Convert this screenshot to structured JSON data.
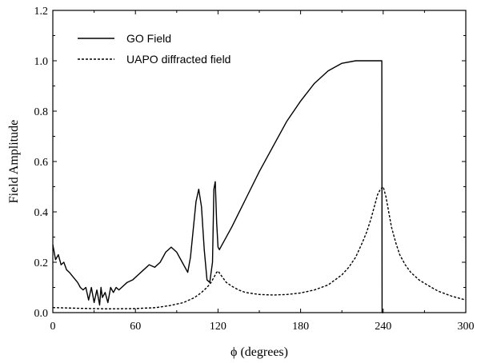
{
  "chart_data": {
    "type": "line",
    "title": "",
    "xlabel": "ϕ (degrees)",
    "ylabel": "Field Amplitude",
    "xlim": [
      0,
      300
    ],
    "ylim": [
      0.0,
      1.2
    ],
    "xticks": [
      0,
      60,
      120,
      180,
      240,
      300
    ],
    "yticks": [
      0.0,
      0.2,
      0.4,
      0.6,
      0.8,
      1.0,
      1.2
    ],
    "xtick_labels": [
      "0",
      "60",
      "120",
      "180",
      "240",
      "300"
    ],
    "ytick_labels": [
      "0.0",
      "0.2",
      "0.4",
      "0.6",
      "0.8",
      "1.0",
      "1.2"
    ],
    "grid": false,
    "legend_position": "top-left",
    "series": [
      {
        "name": "GO Field",
        "style": "solid",
        "color": "#000000",
        "x": [
          0,
          2,
          4,
          6,
          8,
          10,
          12,
          15,
          18,
          20,
          22,
          24,
          26,
          28,
          30,
          32,
          34,
          35,
          36,
          38,
          40,
          42,
          44,
          46,
          48,
          50,
          54,
          58,
          62,
          66,
          70,
          74,
          78,
          82,
          86,
          90,
          94,
          98,
          100,
          102,
          104,
          106,
          108,
          110,
          112,
          114,
          116,
          117,
          118,
          119,
          120,
          121,
          122,
          130,
          140,
          150,
          160,
          170,
          180,
          190,
          200,
          210,
          220,
          230,
          235,
          239,
          239.2,
          240,
          242,
          300
        ],
        "y": [
          0.27,
          0.21,
          0.23,
          0.19,
          0.2,
          0.17,
          0.16,
          0.14,
          0.12,
          0.1,
          0.09,
          0.1,
          0.05,
          0.1,
          0.04,
          0.09,
          0.03,
          0.1,
          0.06,
          0.08,
          0.04,
          0.1,
          0.08,
          0.1,
          0.09,
          0.1,
          0.12,
          0.13,
          0.15,
          0.17,
          0.19,
          0.18,
          0.2,
          0.24,
          0.26,
          0.24,
          0.2,
          0.16,
          0.22,
          0.33,
          0.44,
          0.49,
          0.42,
          0.25,
          0.13,
          0.12,
          0.2,
          0.49,
          0.52,
          0.36,
          0.26,
          0.25,
          0.26,
          0.34,
          0.45,
          0.56,
          0.66,
          0.76,
          0.84,
          0.91,
          0.96,
          0.99,
          1.0,
          1.0,
          1.0,
          1.0,
          0.0,
          0.0,
          null,
          null
        ]
      },
      {
        "name": "UAPO diffracted field",
        "style": "dashed",
        "color": "#000000",
        "x": [
          0,
          20,
          40,
          60,
          75,
          85,
          95,
          103,
          108,
          112,
          115,
          117,
          119,
          120,
          122,
          126,
          130,
          135,
          140,
          150,
          160,
          170,
          180,
          190,
          200,
          210,
          215,
          220,
          225,
          228,
          231,
          234,
          236,
          238,
          240,
          242,
          244,
          246,
          249,
          252,
          256,
          260,
          266,
          272,
          280,
          290,
          300
        ],
        "y": [
          0.02,
          0.017,
          0.015,
          0.016,
          0.02,
          0.028,
          0.04,
          0.06,
          0.08,
          0.1,
          0.12,
          0.14,
          0.16,
          0.165,
          0.15,
          0.12,
          0.105,
          0.09,
          0.08,
          0.072,
          0.07,
          0.072,
          0.078,
          0.09,
          0.11,
          0.15,
          0.18,
          0.22,
          0.28,
          0.32,
          0.37,
          0.43,
          0.47,
          0.49,
          0.5,
          0.46,
          0.4,
          0.34,
          0.28,
          0.23,
          0.19,
          0.16,
          0.13,
          0.11,
          0.085,
          0.065,
          0.05
        ]
      }
    ]
  }
}
